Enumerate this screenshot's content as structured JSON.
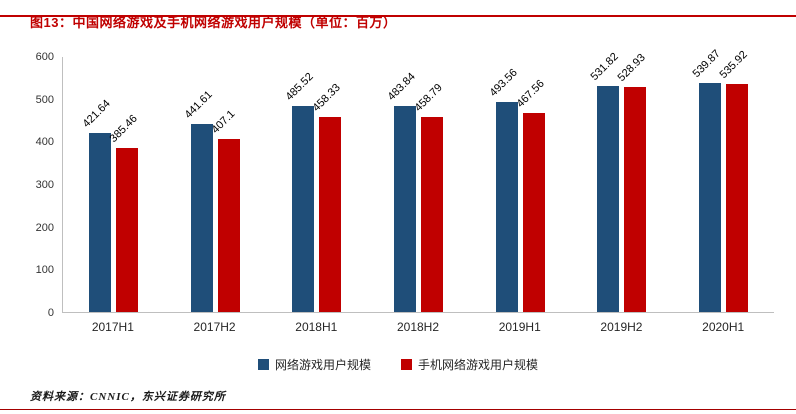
{
  "page": {
    "title": "图13：中国网络游戏及手机网络游戏用户规模（单位：百万）",
    "source": "资料来源：CNNIC，东兴证券研究所"
  },
  "colors": {
    "accent": "#c00000",
    "series_pc": "#1f4e79",
    "series_mobile": "#c00000",
    "axis": "#bfbfbf"
  },
  "chart_data": {
    "type": "bar",
    "title": "中国网络游戏及手机网络游戏用户规模（单位：百万）",
    "categories": [
      "2017H1",
      "2017H2",
      "2018H1",
      "2018H2",
      "2019H1",
      "2019H2",
      "2020H1"
    ],
    "series": [
      {
        "name": "网络游戏用户规模",
        "color": "#1f4e79",
        "values": [
          421.64,
          441.61,
          485.52,
          483.84,
          493.56,
          531.82,
          539.87
        ]
      },
      {
        "name": "手机网络游戏用户规模",
        "color": "#c00000",
        "values": [
          385.46,
          407.1,
          458.33,
          458.79,
          467.56,
          528.93,
          535.92
        ]
      }
    ],
    "xlabel": "",
    "ylabel": "",
    "ylim": [
      0,
      600
    ],
    "yticks": [
      0,
      100,
      200,
      300,
      400,
      500,
      600
    ],
    "grid": false,
    "legend_position": "bottom",
    "data_labels": true,
    "data_label_rotation": -45
  }
}
